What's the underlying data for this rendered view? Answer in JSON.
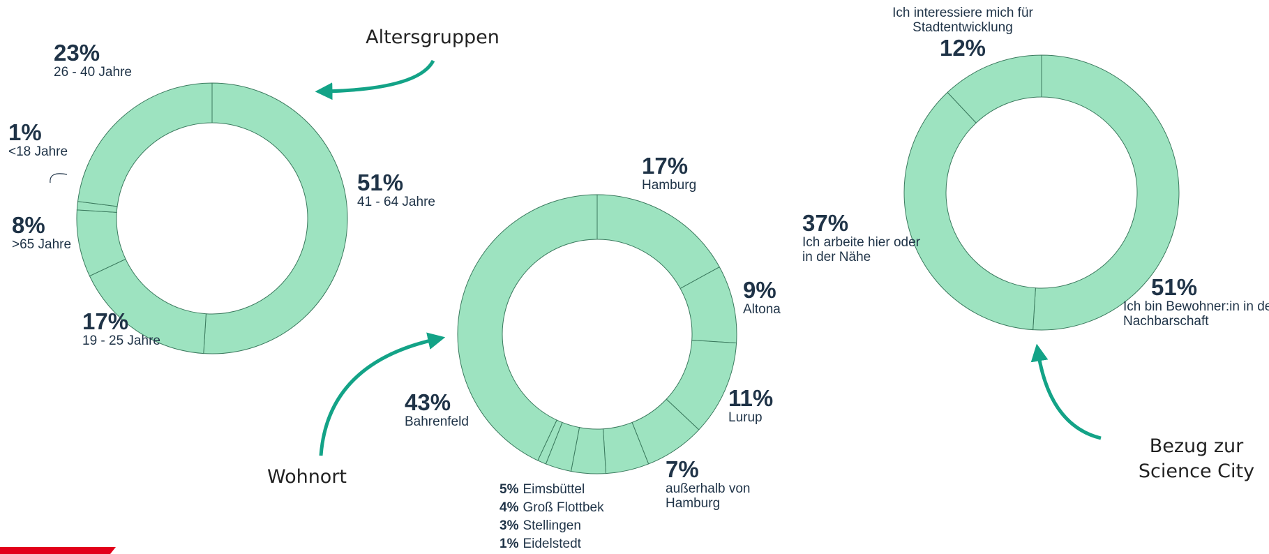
{
  "chart_data": [
    {
      "type": "pie",
      "title": "Altersgruppen",
      "color": "#9de3c0",
      "categories": [
        "41 - 64 Jahre",
        "19 - 25 Jahre",
        ">65 Jahre",
        "<18 Jahre",
        "26 - 40 Jahre"
      ],
      "values": [
        51,
        17,
        8,
        1,
        23
      ],
      "value_labels": [
        "51%",
        "17%",
        "8%",
        "1%",
        "23%"
      ]
    },
    {
      "type": "pie",
      "title": "Wohnort",
      "color": "#9de3c0",
      "categories": [
        "Hamburg",
        "Altona",
        "Lurup",
        "außerhalb von Hamburg",
        "Eimsbüttel",
        "Groß Flottbek",
        "Stellingen",
        "Eidelstedt",
        "Bahrenfeld"
      ],
      "values": [
        17,
        9,
        11,
        7,
        5,
        4,
        3,
        1,
        43
      ],
      "value_labels": [
        "17%",
        "9%",
        "11%",
        "7%",
        "5%",
        "4%",
        "3%",
        "1%",
        "43%"
      ]
    },
    {
      "type": "pie",
      "title": "Bezug zur Science City",
      "color": "#9de3c0",
      "categories": [
        "Ich bin Bewohner:in in der Nachbarschaft",
        "Ich arbeite hier oder in der Nähe",
        "Ich interessiere mich für Stadtentwicklung"
      ],
      "values": [
        51,
        37,
        12
      ],
      "value_labels": [
        "51%",
        "37%",
        "12%"
      ]
    }
  ]
}
